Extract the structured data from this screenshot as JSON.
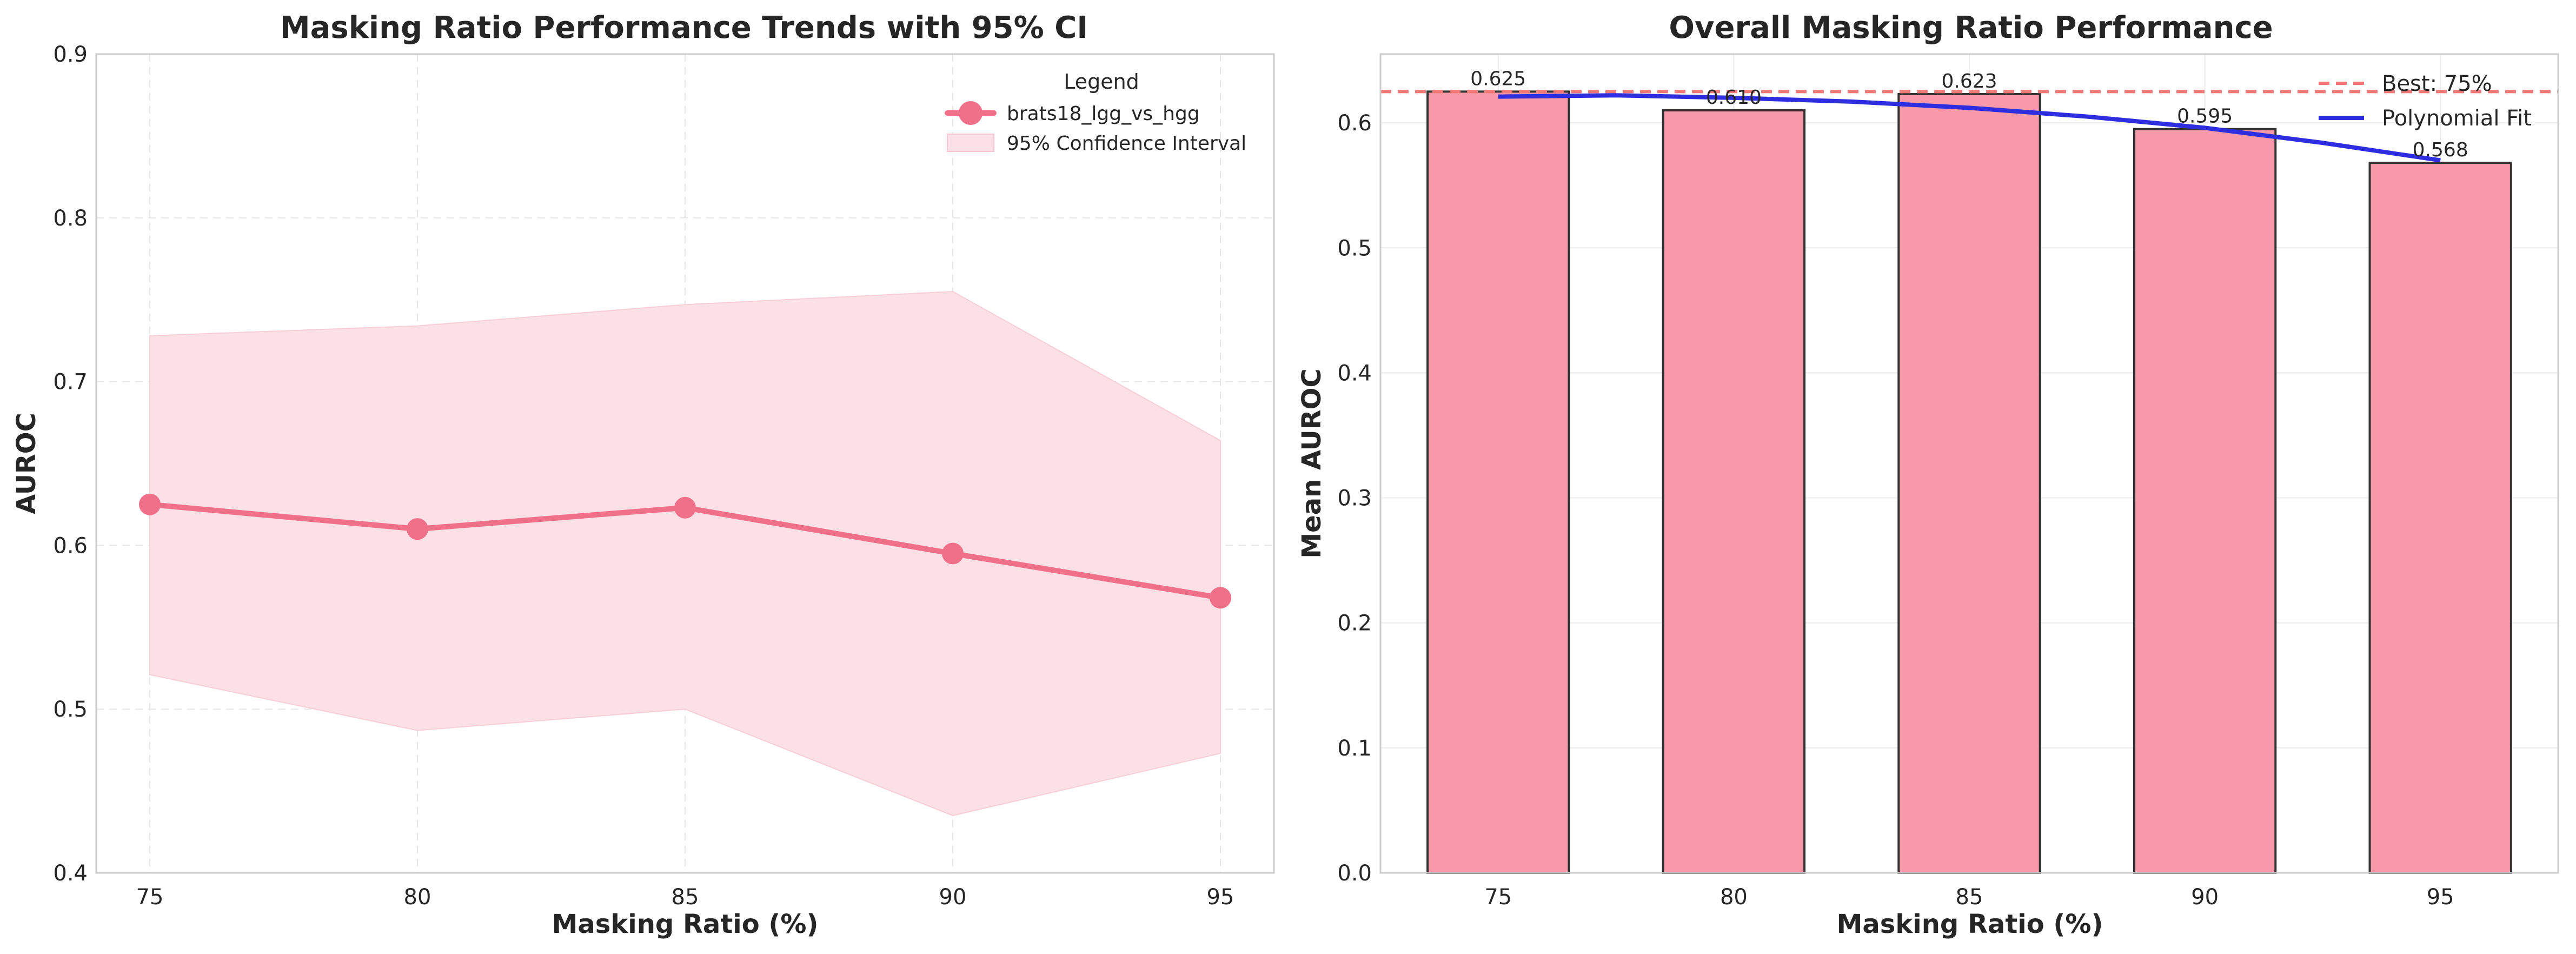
{
  "chart_data": [
    {
      "type": "line",
      "title": "Masking Ratio Performance Trends with 95% CI",
      "xlabel": "Masking Ratio (%)",
      "ylabel": "AUROC",
      "xlim": [
        74,
        96
      ],
      "ylim": [
        0.4,
        0.9
      ],
      "xticks": [
        75,
        80,
        85,
        90,
        95
      ],
      "yticks": [
        0.4,
        0.5,
        0.6,
        0.7,
        0.8,
        0.9
      ],
      "grid": true,
      "legend": {
        "title": "Legend",
        "placement": "top-right",
        "entries": [
          "brats18_lgg_vs_hgg",
          "95% Confidence Interval"
        ]
      },
      "series": [
        {
          "name": "brats18_lgg_vs_hgg",
          "x": [
            75,
            80,
            85,
            90,
            95
          ],
          "y": [
            0.625,
            0.61,
            0.623,
            0.595,
            0.568
          ],
          "ci_low": [
            0.521,
            0.487,
            0.5,
            0.435,
            0.473
          ],
          "ci_high": [
            0.728,
            0.734,
            0.747,
            0.755,
            0.664
          ],
          "color": "#f0708a",
          "ci_color": "#fbe0e6"
        }
      ]
    },
    {
      "type": "bar",
      "title": "Overall Masking Ratio Performance",
      "xlabel": "Masking Ratio (%)",
      "ylabel": "Mean AUROC",
      "categories": [
        "75",
        "80",
        "85",
        "90",
        "95"
      ],
      "values": [
        0.625,
        0.61,
        0.623,
        0.595,
        0.568
      ],
      "value_labels": [
        "0.625",
        "0.610",
        "0.623",
        "0.595",
        "0.568"
      ],
      "ylim": [
        0,
        0.655
      ],
      "yticks": [
        0.0,
        0.1,
        0.2,
        0.3,
        0.4,
        0.5,
        0.6
      ],
      "grid": true,
      "bar_color": "#f799a9",
      "best_line": {
        "label": "Best: 75%",
        "value": 0.625,
        "color": "#f07878"
      },
      "fit": {
        "label": "Polynomial Fit",
        "color": "#2e2ee0",
        "x": [
          75,
          77.5,
          80,
          82.5,
          85,
          87.5,
          90,
          92.5,
          95
        ],
        "y": [
          0.621,
          0.622,
          0.62,
          0.617,
          0.612,
          0.605,
          0.596,
          0.584,
          0.57
        ]
      },
      "legend": {
        "placement": "top-right",
        "entries": [
          "Best: 75%",
          "Polynomial Fit"
        ]
      }
    }
  ]
}
